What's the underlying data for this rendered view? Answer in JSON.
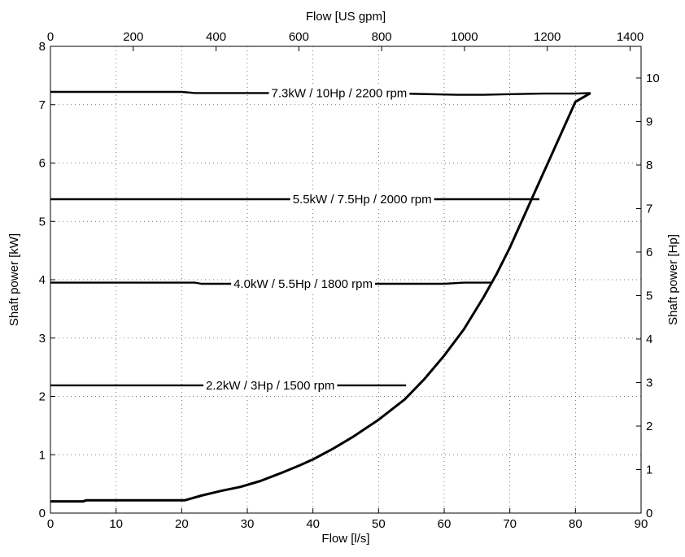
{
  "chart_data": {
    "type": "line",
    "title": "",
    "xlabel": "Flow [l/s]",
    "ylabel": "Shaft power [kW]",
    "x2label": "Flow [US gpm]",
    "y2label": "Shaft power [Hp]",
    "xlim": [
      0,
      90
    ],
    "ylim": [
      0,
      8
    ],
    "x2lim": [
      0,
      1426.5
    ],
    "y2lim": [
      0,
      10.728
    ],
    "grid": true,
    "grid_style": "dotted",
    "x_ticks": [
      "0",
      "10",
      "20",
      "30",
      "40",
      "50",
      "60",
      "70",
      "80",
      "90"
    ],
    "y_ticks": [
      "0",
      "1",
      "2",
      "3",
      "4",
      "5",
      "6",
      "7",
      "8"
    ],
    "x2_ticks": [
      "0",
      "200",
      "400",
      "600",
      "800",
      "1000",
      "1200",
      "1400"
    ],
    "y2_ticks": [
      "0",
      "1",
      "2",
      "3",
      "4",
      "5",
      "6",
      "7",
      "8",
      "9",
      "10"
    ],
    "series": [
      {
        "name": "",
        "x": [
          0,
          5,
          5.5,
          10,
          15,
          20,
          20.5,
          23,
          26,
          29,
          32,
          35,
          38,
          40,
          43,
          46,
          50,
          54,
          57,
          60,
          63,
          66,
          68,
          70,
          72,
          74,
          76,
          78,
          80,
          82.3
        ],
        "y": [
          0.2,
          0.2,
          0.22,
          0.22,
          0.22,
          0.22,
          0.22,
          0.3,
          0.38,
          0.45,
          0.55,
          0.68,
          0.82,
          0.92,
          1.1,
          1.3,
          1.6,
          1.95,
          2.3,
          2.7,
          3.15,
          3.7,
          4.1,
          4.55,
          5.05,
          5.55,
          6.05,
          6.55,
          7.05,
          7.2
        ]
      },
      {
        "name": "7.3kW / 10Hp / 2200 rpm",
        "x": [
          0,
          20,
          22,
          26,
          35,
          50,
          62,
          66,
          70,
          75,
          80,
          82.3
        ],
        "y": [
          7.22,
          7.22,
          7.2,
          7.2,
          7.2,
          7.2,
          7.17,
          7.17,
          7.18,
          7.19,
          7.19,
          7.2
        ]
      },
      {
        "name": "5.5kW / 7.5Hp / 2000 rpm",
        "x": [
          0,
          74.5
        ],
        "y": [
          5.38,
          5.38
        ]
      },
      {
        "name": "4.0kW / 5.5Hp / 1800 rpm",
        "x": [
          0,
          22,
          23,
          60,
          63,
          67.3
        ],
        "y": [
          3.95,
          3.95,
          3.93,
          3.93,
          3.95,
          3.95
        ]
      },
      {
        "name": "2.2kW / 3Hp / 1500 rpm",
        "x": [
          0,
          54.2
        ],
        "y": [
          2.19,
          2.19
        ]
      }
    ],
    "annotations": [
      {
        "text": "7.3kW / 10Hp / 2200 rpm",
        "x": 44,
        "y": 7.2
      },
      {
        "text": "5.5kW / 7.5Hp / 2000 rpm",
        "x": 47.5,
        "y": 5.38
      },
      {
        "text": "4.0kW / 5.5Hp / 1800 rpm",
        "x": 38.5,
        "y": 3.93
      },
      {
        "text": "2.2kW / 3Hp / 1500 rpm",
        "x": 33.5,
        "y": 2.19
      }
    ]
  }
}
